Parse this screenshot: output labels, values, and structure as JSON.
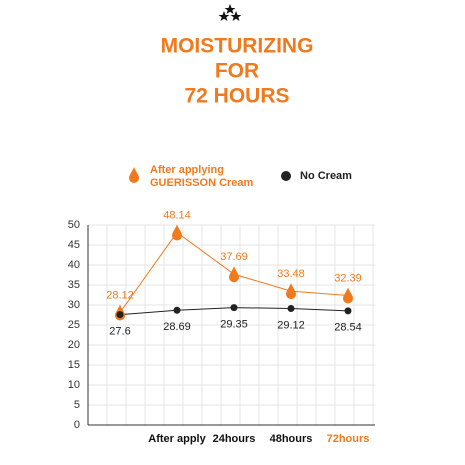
{
  "chart_data": {
    "type": "line",
    "title_lines": [
      "MOISTURIZING",
      "FOR",
      "72 HOURS"
    ],
    "categories": [
      null,
      "After apply",
      "24hours",
      "48hours",
      "72hours"
    ],
    "highlight_category": 4,
    "highlight_color": "#f07a1e",
    "series": [
      {
        "name": "After applying GUERISSON Cream",
        "color": "#f07a1e",
        "marker": "drop",
        "values": [
          28.12,
          48.14,
          37.69,
          33.48,
          32.39
        ]
      },
      {
        "name": "No Cream",
        "color": "#222222",
        "marker": "circle",
        "values": [
          27.6,
          28.69,
          29.35,
          29.12,
          28.54
        ]
      }
    ],
    "ylim": [
      0,
      50
    ],
    "yticks": [
      0,
      5,
      10,
      15,
      20,
      25,
      30,
      35,
      40,
      45,
      50
    ],
    "grid": true
  }
}
